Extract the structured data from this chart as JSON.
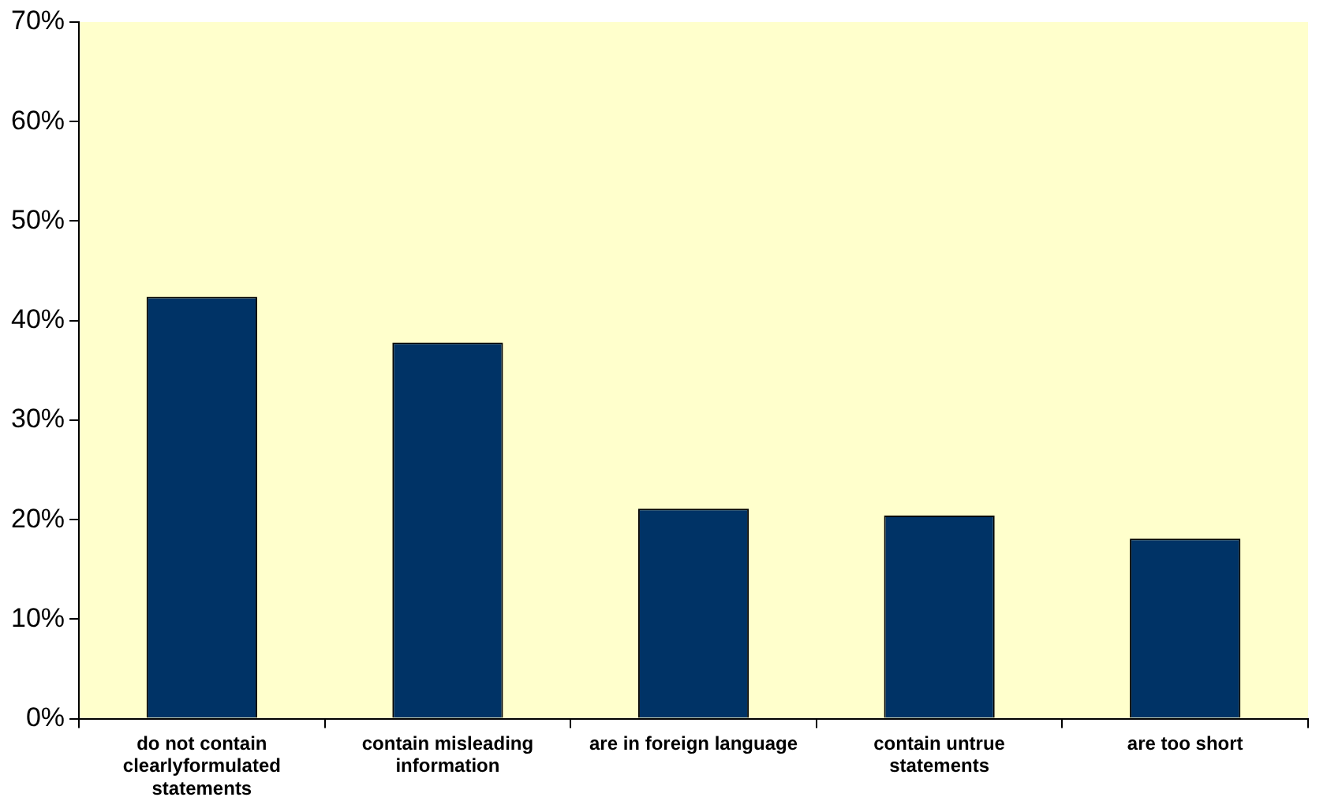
{
  "chart_data": {
    "type": "bar",
    "categories": [
      "do not contain clearlyformulated statements",
      "contain misleading information",
      "are in foreign language",
      "contain untrue statements",
      "are too short"
    ],
    "values": [
      42.4,
      37.8,
      21.1,
      20.4,
      18.1
    ],
    "color": "#003366",
    "ylim": [
      0,
      70
    ],
    "yticks": [
      {
        "value": 0,
        "label": "0%"
      },
      {
        "value": 10,
        "label": "10%"
      },
      {
        "value": 20,
        "label": "20%"
      },
      {
        "value": 30,
        "label": "30%"
      },
      {
        "value": 40,
        "label": "40%"
      },
      {
        "value": 50,
        "label": "50%"
      },
      {
        "value": 60,
        "label": "60%"
      },
      {
        "value": 70,
        "label": "70%"
      }
    ],
    "grid": false,
    "legend": false
  }
}
